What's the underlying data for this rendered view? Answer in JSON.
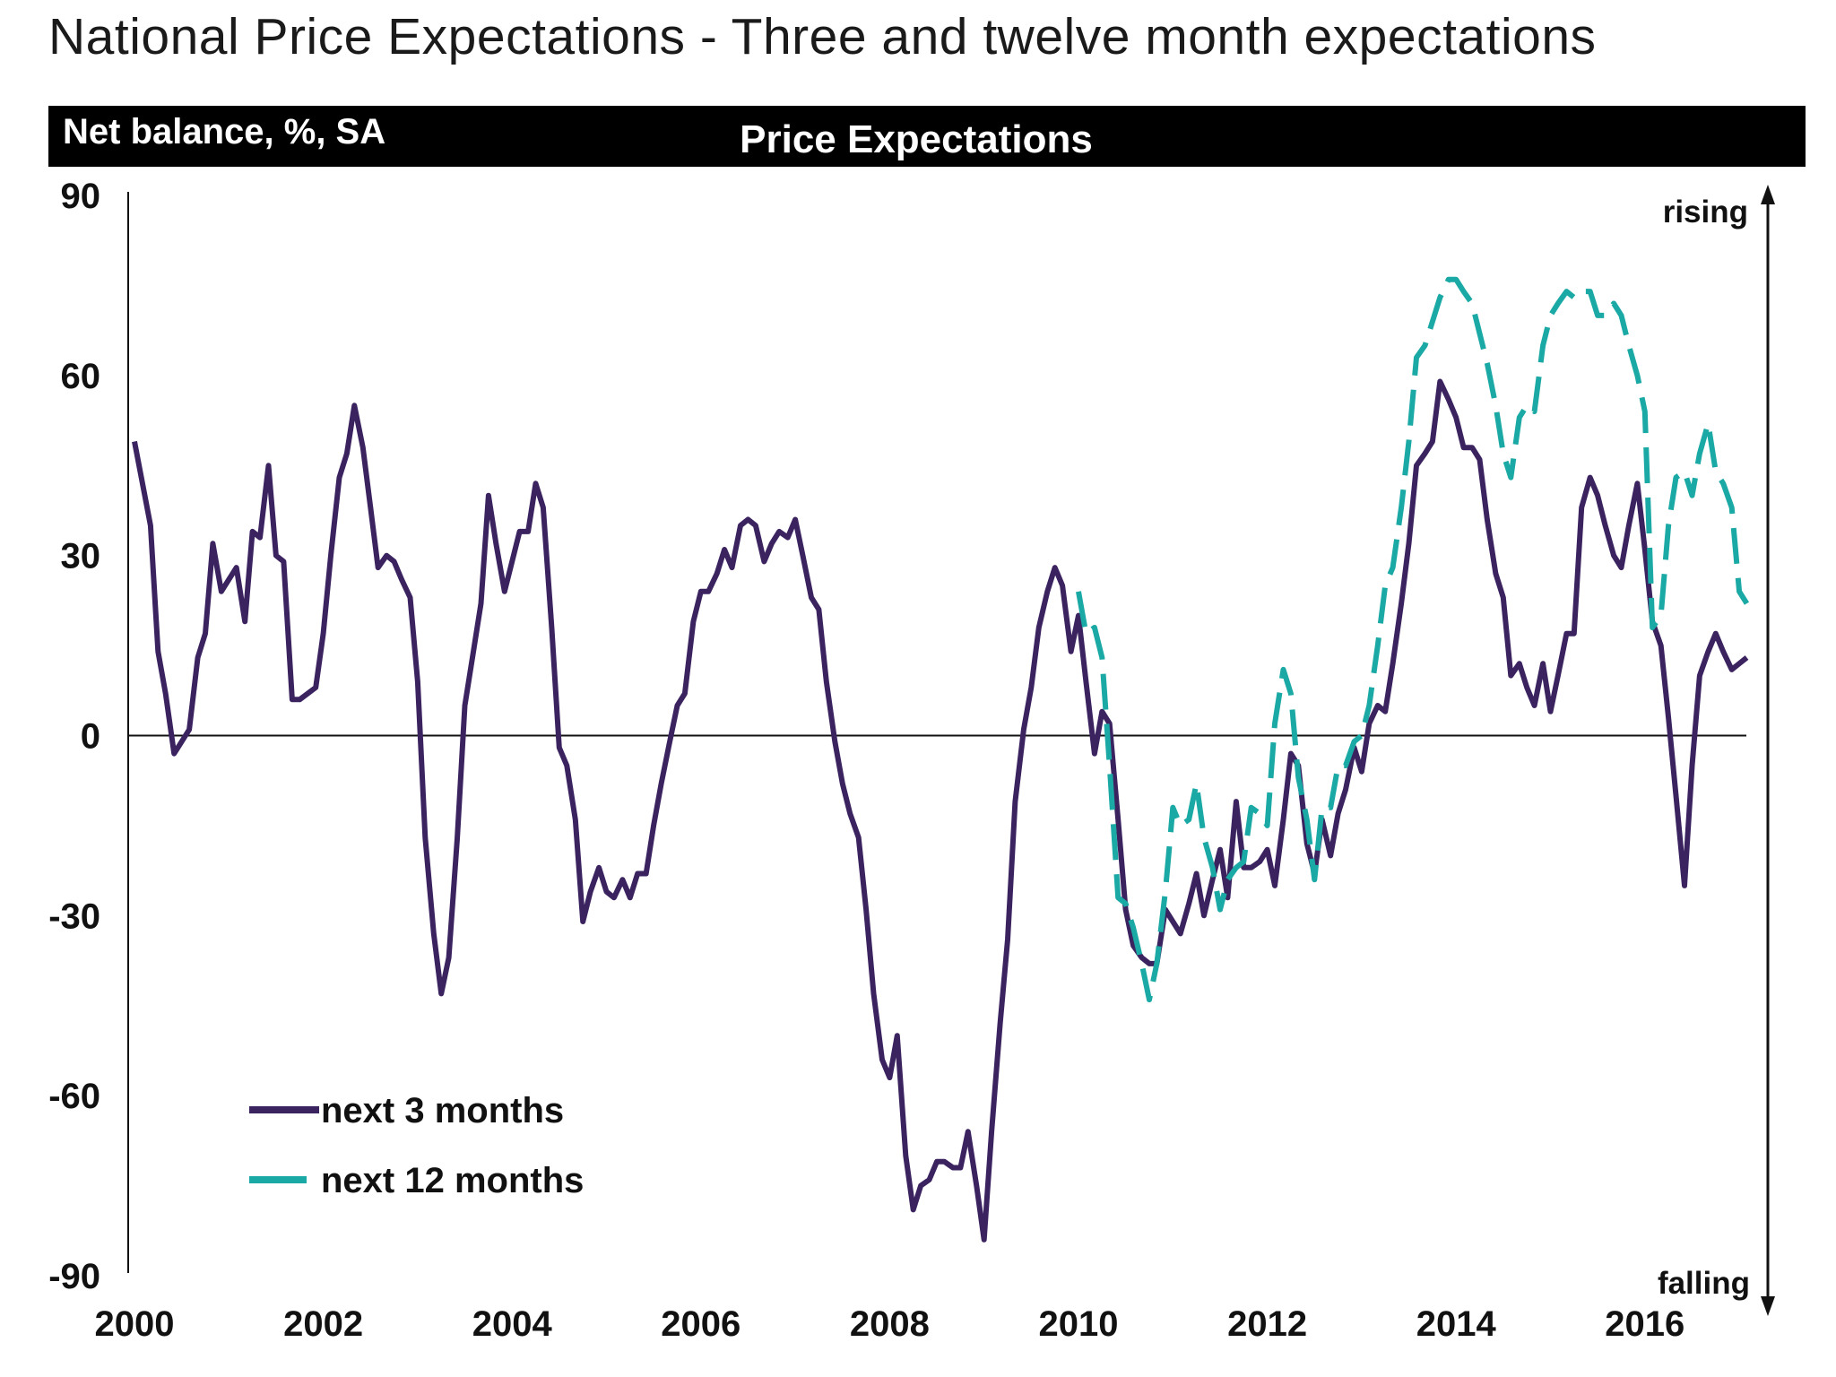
{
  "page": {
    "title": "National Price Expectations - Three and twelve month expectations"
  },
  "colors": {
    "series_3m": "#3b2360",
    "series_12m": "#1aa9a4",
    "header_bg": "#000000",
    "header_text": "#ffffff"
  },
  "chart_data": {
    "type": "line",
    "title": "Price Expectations",
    "ylabel": "Net balance, %, SA",
    "xlabel": "",
    "ylim": [
      -90,
      90
    ],
    "xlim": [
      2000,
      2017.1
    ],
    "yticks": [
      "90",
      "60",
      "30",
      "0",
      "-30",
      "-60",
      "-90"
    ],
    "xticks": [
      "2000",
      "2002",
      "2004",
      "2006",
      "2008",
      "2010",
      "2012",
      "2014",
      "2016"
    ],
    "annotations": {
      "top": "rising",
      "bottom": "falling"
    },
    "legend": {
      "position": "bottom-left",
      "entries": [
        "next 3 months",
        "next 12 months"
      ]
    },
    "series": [
      {
        "name": "next 3 months",
        "style": "solid",
        "points": [
          [
            2000.0,
            49
          ],
          [
            2000.17,
            35
          ],
          [
            2000.25,
            14
          ],
          [
            2000.33,
            7
          ],
          [
            2000.42,
            -3
          ],
          [
            2000.5,
            -1
          ],
          [
            2000.58,
            1
          ],
          [
            2000.67,
            13
          ],
          [
            2000.75,
            17
          ],
          [
            2000.83,
            32
          ],
          [
            2000.92,
            24
          ],
          [
            2001.0,
            26
          ],
          [
            2001.08,
            28
          ],
          [
            2001.17,
            19
          ],
          [
            2001.25,
            34
          ],
          [
            2001.33,
            33
          ],
          [
            2001.42,
            45
          ],
          [
            2001.5,
            30
          ],
          [
            2001.58,
            29
          ],
          [
            2001.67,
            6
          ],
          [
            2001.75,
            6
          ],
          [
            2001.92,
            8
          ],
          [
            2002.0,
            17
          ],
          [
            2002.08,
            30
          ],
          [
            2002.17,
            43
          ],
          [
            2002.25,
            47
          ],
          [
            2002.33,
            55
          ],
          [
            2002.42,
            48
          ],
          [
            2002.5,
            38
          ],
          [
            2002.58,
            28
          ],
          [
            2002.67,
            30
          ],
          [
            2002.75,
            29
          ],
          [
            2002.83,
            26
          ],
          [
            2002.92,
            23
          ],
          [
            2003.0,
            9
          ],
          [
            2003.08,
            -17
          ],
          [
            2003.17,
            -33
          ],
          [
            2003.25,
            -43
          ],
          [
            2003.33,
            -37
          ],
          [
            2003.42,
            -17
          ],
          [
            2003.5,
            5
          ],
          [
            2003.58,
            13
          ],
          [
            2003.67,
            22
          ],
          [
            2003.75,
            40
          ],
          [
            2003.83,
            32
          ],
          [
            2003.92,
            24
          ],
          [
            2004.0,
            29
          ],
          [
            2004.08,
            34
          ],
          [
            2004.17,
            34
          ],
          [
            2004.25,
            42
          ],
          [
            2004.33,
            38
          ],
          [
            2004.42,
            18
          ],
          [
            2004.5,
            -2
          ],
          [
            2004.58,
            -5
          ],
          [
            2004.67,
            -14
          ],
          [
            2004.75,
            -31
          ],
          [
            2004.83,
            -26
          ],
          [
            2004.92,
            -22
          ],
          [
            2005.0,
            -26
          ],
          [
            2005.08,
            -27
          ],
          [
            2005.17,
            -24
          ],
          [
            2005.25,
            -27
          ],
          [
            2005.33,
            -23
          ],
          [
            2005.42,
            -23
          ],
          [
            2005.5,
            -15
          ],
          [
            2005.58,
            -8
          ],
          [
            2005.67,
            -1
          ],
          [
            2005.75,
            5
          ],
          [
            2005.83,
            7
          ],
          [
            2005.92,
            19
          ],
          [
            2006.0,
            24
          ],
          [
            2006.08,
            24
          ],
          [
            2006.17,
            27
          ],
          [
            2006.25,
            31
          ],
          [
            2006.33,
            28
          ],
          [
            2006.42,
            35
          ],
          [
            2006.5,
            36
          ],
          [
            2006.58,
            35
          ],
          [
            2006.67,
            29
          ],
          [
            2006.75,
            32
          ],
          [
            2006.83,
            34
          ],
          [
            2006.92,
            33
          ],
          [
            2007.0,
            36
          ],
          [
            2007.08,
            30
          ],
          [
            2007.17,
            23
          ],
          [
            2007.25,
            21
          ],
          [
            2007.33,
            9
          ],
          [
            2007.42,
            -1
          ],
          [
            2007.5,
            -8
          ],
          [
            2007.58,
            -13
          ],
          [
            2007.67,
            -17
          ],
          [
            2007.75,
            -29
          ],
          [
            2007.83,
            -43
          ],
          [
            2007.92,
            -54
          ],
          [
            2008.0,
            -57
          ],
          [
            2008.08,
            -50
          ],
          [
            2008.17,
            -70
          ],
          [
            2008.25,
            -79
          ],
          [
            2008.33,
            -75
          ],
          [
            2008.42,
            -74
          ],
          [
            2008.5,
            -71
          ],
          [
            2008.58,
            -71
          ],
          [
            2008.67,
            -72
          ],
          [
            2008.75,
            -72
          ],
          [
            2008.83,
            -66
          ],
          [
            2008.92,
            -75
          ],
          [
            2009.0,
            -84
          ],
          [
            2009.08,
            -66
          ],
          [
            2009.17,
            -48
          ],
          [
            2009.25,
            -34
          ],
          [
            2009.33,
            -11
          ],
          [
            2009.42,
            1
          ],
          [
            2009.5,
            8
          ],
          [
            2009.58,
            18
          ],
          [
            2009.67,
            24
          ],
          [
            2009.75,
            28
          ],
          [
            2009.83,
            25
          ],
          [
            2009.92,
            14
          ],
          [
            2010.0,
            20
          ],
          [
            2010.08,
            9
          ],
          [
            2010.17,
            -3
          ],
          [
            2010.25,
            4
          ],
          [
            2010.33,
            2
          ],
          [
            2010.42,
            -14
          ],
          [
            2010.5,
            -29
          ],
          [
            2010.58,
            -35
          ],
          [
            2010.67,
            -37
          ],
          [
            2010.75,
            -38
          ],
          [
            2010.83,
            -38
          ],
          [
            2010.92,
            -29
          ],
          [
            2011.0,
            -31
          ],
          [
            2011.08,
            -33
          ],
          [
            2011.17,
            -28
          ],
          [
            2011.25,
            -23
          ],
          [
            2011.33,
            -30
          ],
          [
            2011.42,
            -24
          ],
          [
            2011.5,
            -19
          ],
          [
            2011.58,
            -27
          ],
          [
            2011.67,
            -11
          ],
          [
            2011.75,
            -22
          ],
          [
            2011.83,
            -22
          ],
          [
            2011.92,
            -21
          ],
          [
            2012.0,
            -19
          ],
          [
            2012.08,
            -25
          ],
          [
            2012.17,
            -14
          ],
          [
            2012.25,
            -3
          ],
          [
            2012.33,
            -5
          ],
          [
            2012.42,
            -18
          ],
          [
            2012.5,
            -23
          ],
          [
            2012.58,
            -14
          ],
          [
            2012.67,
            -20
          ],
          [
            2012.75,
            -13
          ],
          [
            2012.83,
            -9
          ],
          [
            2012.92,
            -2
          ],
          [
            2013.0,
            -6
          ],
          [
            2013.08,
            2
          ],
          [
            2013.17,
            5
          ],
          [
            2013.25,
            4
          ],
          [
            2013.33,
            12
          ],
          [
            2013.42,
            22
          ],
          [
            2013.5,
            32
          ],
          [
            2013.58,
            45
          ],
          [
            2013.67,
            47
          ],
          [
            2013.75,
            49
          ],
          [
            2013.83,
            59
          ],
          [
            2013.92,
            56
          ],
          [
            2014.0,
            53
          ],
          [
            2014.08,
            48
          ],
          [
            2014.17,
            48
          ],
          [
            2014.25,
            46
          ],
          [
            2014.33,
            36
          ],
          [
            2014.42,
            27
          ],
          [
            2014.5,
            23
          ],
          [
            2014.58,
            10
          ],
          [
            2014.67,
            12
          ],
          [
            2014.75,
            8
          ],
          [
            2014.83,
            5
          ],
          [
            2014.92,
            12
          ],
          [
            2015.0,
            4
          ],
          [
            2015.08,
            10
          ],
          [
            2015.17,
            17
          ],
          [
            2015.25,
            17
          ],
          [
            2015.33,
            38
          ],
          [
            2015.42,
            43
          ],
          [
            2015.5,
            40
          ],
          [
            2015.58,
            35
          ],
          [
            2015.67,
            30
          ],
          [
            2015.75,
            28
          ],
          [
            2015.83,
            35
          ],
          [
            2015.92,
            42
          ],
          [
            2016.0,
            31
          ],
          [
            2016.08,
            19
          ],
          [
            2016.17,
            15
          ],
          [
            2016.25,
            3
          ],
          [
            2016.33,
            -10
          ],
          [
            2016.42,
            -25
          ],
          [
            2016.5,
            -5
          ],
          [
            2016.58,
            10
          ],
          [
            2016.67,
            14
          ],
          [
            2016.75,
            17
          ],
          [
            2016.83,
            14
          ],
          [
            2016.92,
            11
          ],
          [
            2017.0,
            12
          ],
          [
            2017.08,
            13
          ]
        ]
      },
      {
        "name": "next 12 months",
        "style": "dashed",
        "points": [
          [
            2010.0,
            24
          ],
          [
            2010.08,
            17
          ],
          [
            2010.17,
            18
          ],
          [
            2010.25,
            13
          ],
          [
            2010.33,
            -5
          ],
          [
            2010.42,
            -27
          ],
          [
            2010.5,
            -28
          ],
          [
            2010.58,
            -32
          ],
          [
            2010.67,
            -38
          ],
          [
            2010.75,
            -44
          ],
          [
            2010.83,
            -38
          ],
          [
            2010.92,
            -26
          ],
          [
            2011.0,
            -12
          ],
          [
            2011.08,
            -15
          ],
          [
            2011.17,
            -14
          ],
          [
            2011.25,
            -8
          ],
          [
            2011.33,
            -17
          ],
          [
            2011.42,
            -22
          ],
          [
            2011.5,
            -29
          ],
          [
            2011.58,
            -24
          ],
          [
            2011.67,
            -22
          ],
          [
            2011.75,
            -21
          ],
          [
            2011.83,
            -12
          ],
          [
            2011.92,
            -13
          ],
          [
            2012.0,
            -15
          ],
          [
            2012.08,
            2
          ],
          [
            2012.17,
            11
          ],
          [
            2012.25,
            7
          ],
          [
            2012.33,
            -7
          ],
          [
            2012.42,
            -14
          ],
          [
            2012.5,
            -24
          ],
          [
            2012.58,
            -12
          ],
          [
            2012.67,
            -12
          ],
          [
            2012.75,
            -5
          ],
          [
            2012.83,
            -5
          ],
          [
            2012.92,
            -1
          ],
          [
            2013.0,
            0
          ],
          [
            2013.08,
            5
          ],
          [
            2013.17,
            15
          ],
          [
            2013.25,
            25
          ],
          [
            2013.33,
            28
          ],
          [
            2013.42,
            38
          ],
          [
            2013.5,
            49
          ],
          [
            2013.58,
            63
          ],
          [
            2013.67,
            65
          ],
          [
            2013.75,
            69
          ],
          [
            2013.83,
            73
          ],
          [
            2013.92,
            76
          ],
          [
            2014.0,
            76
          ],
          [
            2014.08,
            74
          ],
          [
            2014.17,
            72
          ],
          [
            2014.25,
            67
          ],
          [
            2014.33,
            62
          ],
          [
            2014.42,
            55
          ],
          [
            2014.5,
            47
          ],
          [
            2014.58,
            43
          ],
          [
            2014.67,
            53
          ],
          [
            2014.75,
            55
          ],
          [
            2014.83,
            54
          ],
          [
            2014.92,
            65
          ],
          [
            2015.0,
            70
          ],
          [
            2015.08,
            72
          ],
          [
            2015.17,
            74
          ],
          [
            2015.25,
            73
          ],
          [
            2015.33,
            74
          ],
          [
            2015.42,
            74
          ],
          [
            2015.5,
            70
          ],
          [
            2015.58,
            70
          ],
          [
            2015.67,
            72
          ],
          [
            2015.75,
            70
          ],
          [
            2015.83,
            65
          ],
          [
            2015.92,
            60
          ],
          [
            2016.0,
            54
          ],
          [
            2016.08,
            18
          ],
          [
            2016.17,
            20
          ],
          [
            2016.25,
            35
          ],
          [
            2016.33,
            43
          ],
          [
            2016.42,
            44
          ],
          [
            2016.5,
            40
          ],
          [
            2016.58,
            47
          ],
          [
            2016.67,
            52
          ],
          [
            2016.75,
            44
          ],
          [
            2016.83,
            42
          ],
          [
            2016.92,
            38
          ],
          [
            2017.0,
            24
          ],
          [
            2017.08,
            22
          ]
        ]
      }
    ]
  }
}
